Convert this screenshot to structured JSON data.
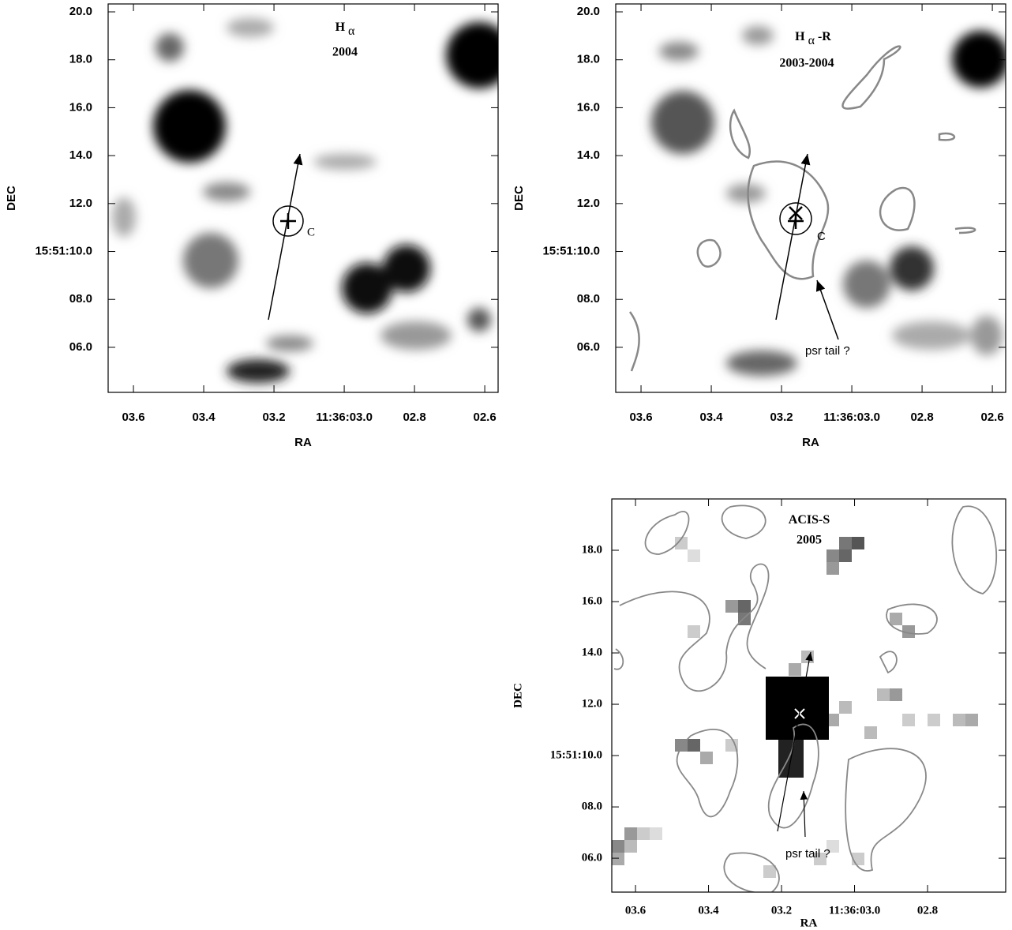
{
  "panels": [
    {
      "title": "H",
      "title_sub": "α",
      "title_suffix": "",
      "subtitle": "2004",
      "xlabel": "RA",
      "ylabel": "DEC",
      "xlim": [
        3.672,
        2.562
      ],
      "ylim": [
        4.12,
        20.33
      ],
      "xticks": [
        {
          "value": 3.6,
          "label": "03.6"
        },
        {
          "value": 3.4,
          "label": "03.4"
        },
        {
          "value": 3.2,
          "label": "03.2"
        },
        {
          "value": 3.0,
          "label": "11:36:03.0"
        },
        {
          "value": 2.8,
          "label": "02.8"
        },
        {
          "value": 2.6,
          "label": "02.6"
        }
      ],
      "yticks": [
        {
          "value": 20,
          "label": "20.0"
        },
        {
          "value": 18,
          "label": "18.0"
        },
        {
          "value": 16,
          "label": "16.0"
        },
        {
          "value": 14,
          "label": "14.0"
        },
        {
          "value": 12,
          "label": "12.0"
        },
        {
          "value": 10,
          "label": "15:51:10.0"
        },
        {
          "value": 8,
          "label": "08.0"
        },
        {
          "value": 6,
          "label": "06.0"
        }
      ],
      "annotations": [
        "C"
      ]
    },
    {
      "title": "H",
      "title_sub": "α",
      "title_suffix": "-R",
      "subtitle": "2003-2004",
      "xlabel": "RA",
      "ylabel": "DEC",
      "xlim": [
        3.672,
        2.562
      ],
      "ylim": [
        4.12,
        20.33
      ],
      "xticks": [
        {
          "value": 3.6,
          "label": "03.6"
        },
        {
          "value": 3.4,
          "label": "03.4"
        },
        {
          "value": 3.2,
          "label": "03.2"
        },
        {
          "value": 3.0,
          "label": "11:36:03.0"
        },
        {
          "value": 2.8,
          "label": "02.8"
        },
        {
          "value": 2.6,
          "label": "02.6"
        }
      ],
      "yticks": [
        {
          "value": 20,
          "label": "20.0"
        },
        {
          "value": 18,
          "label": "18.0"
        },
        {
          "value": 16,
          "label": "16.0"
        },
        {
          "value": 14,
          "label": "14.0"
        },
        {
          "value": 12,
          "label": "12.0"
        },
        {
          "value": 10,
          "label": "15:51:10.0"
        },
        {
          "value": 8,
          "label": "08.0"
        },
        {
          "value": 6,
          "label": "06.0"
        }
      ],
      "annotations": [
        "C",
        "psr tail ?"
      ]
    },
    {
      "title": "ACIS-S",
      "title_sub": "",
      "title_suffix": "",
      "subtitle": "2005",
      "xlabel": "RA",
      "ylabel": "DEC",
      "xlim": [
        3.665,
        2.586
      ],
      "ylim": [
        4.68,
        20.0
      ],
      "xticks": [
        {
          "value": 3.6,
          "label": "03.6"
        },
        {
          "value": 3.4,
          "label": "03.4"
        },
        {
          "value": 3.2,
          "label": "03.2"
        },
        {
          "value": 3.0,
          "label": "11:36:03.0"
        },
        {
          "value": 2.8,
          "label": "02.8"
        }
      ],
      "yticks": [
        {
          "value": 18,
          "label": "18.0"
        },
        {
          "value": 16,
          "label": "16.0"
        },
        {
          "value": 14,
          "label": "14.0"
        },
        {
          "value": 12,
          "label": "12.0"
        },
        {
          "value": 10,
          "label": "15:51:10.0"
        },
        {
          "value": 8,
          "label": "08.0"
        },
        {
          "value": 6,
          "label": "06.0"
        }
      ],
      "annotations": [
        "psr tail ?"
      ]
    }
  ]
}
